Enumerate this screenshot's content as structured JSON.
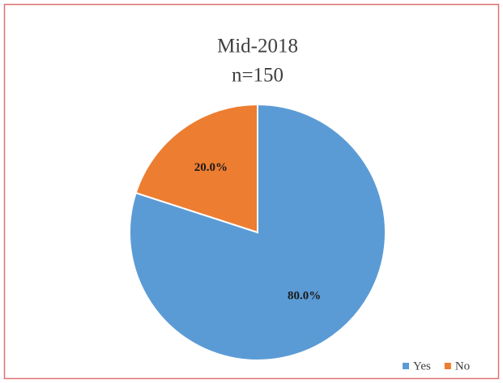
{
  "chart_data": {
    "type": "pie",
    "title": "Mid-2018",
    "subtitle": "n=150",
    "categories": [
      "Yes",
      "No"
    ],
    "values": [
      80,
      20
    ],
    "value_labels": [
      "80.0%",
      "20.0%"
    ],
    "colors": [
      "#5b9bd5",
      "#ed7d31"
    ],
    "legend": "bottom-right"
  }
}
